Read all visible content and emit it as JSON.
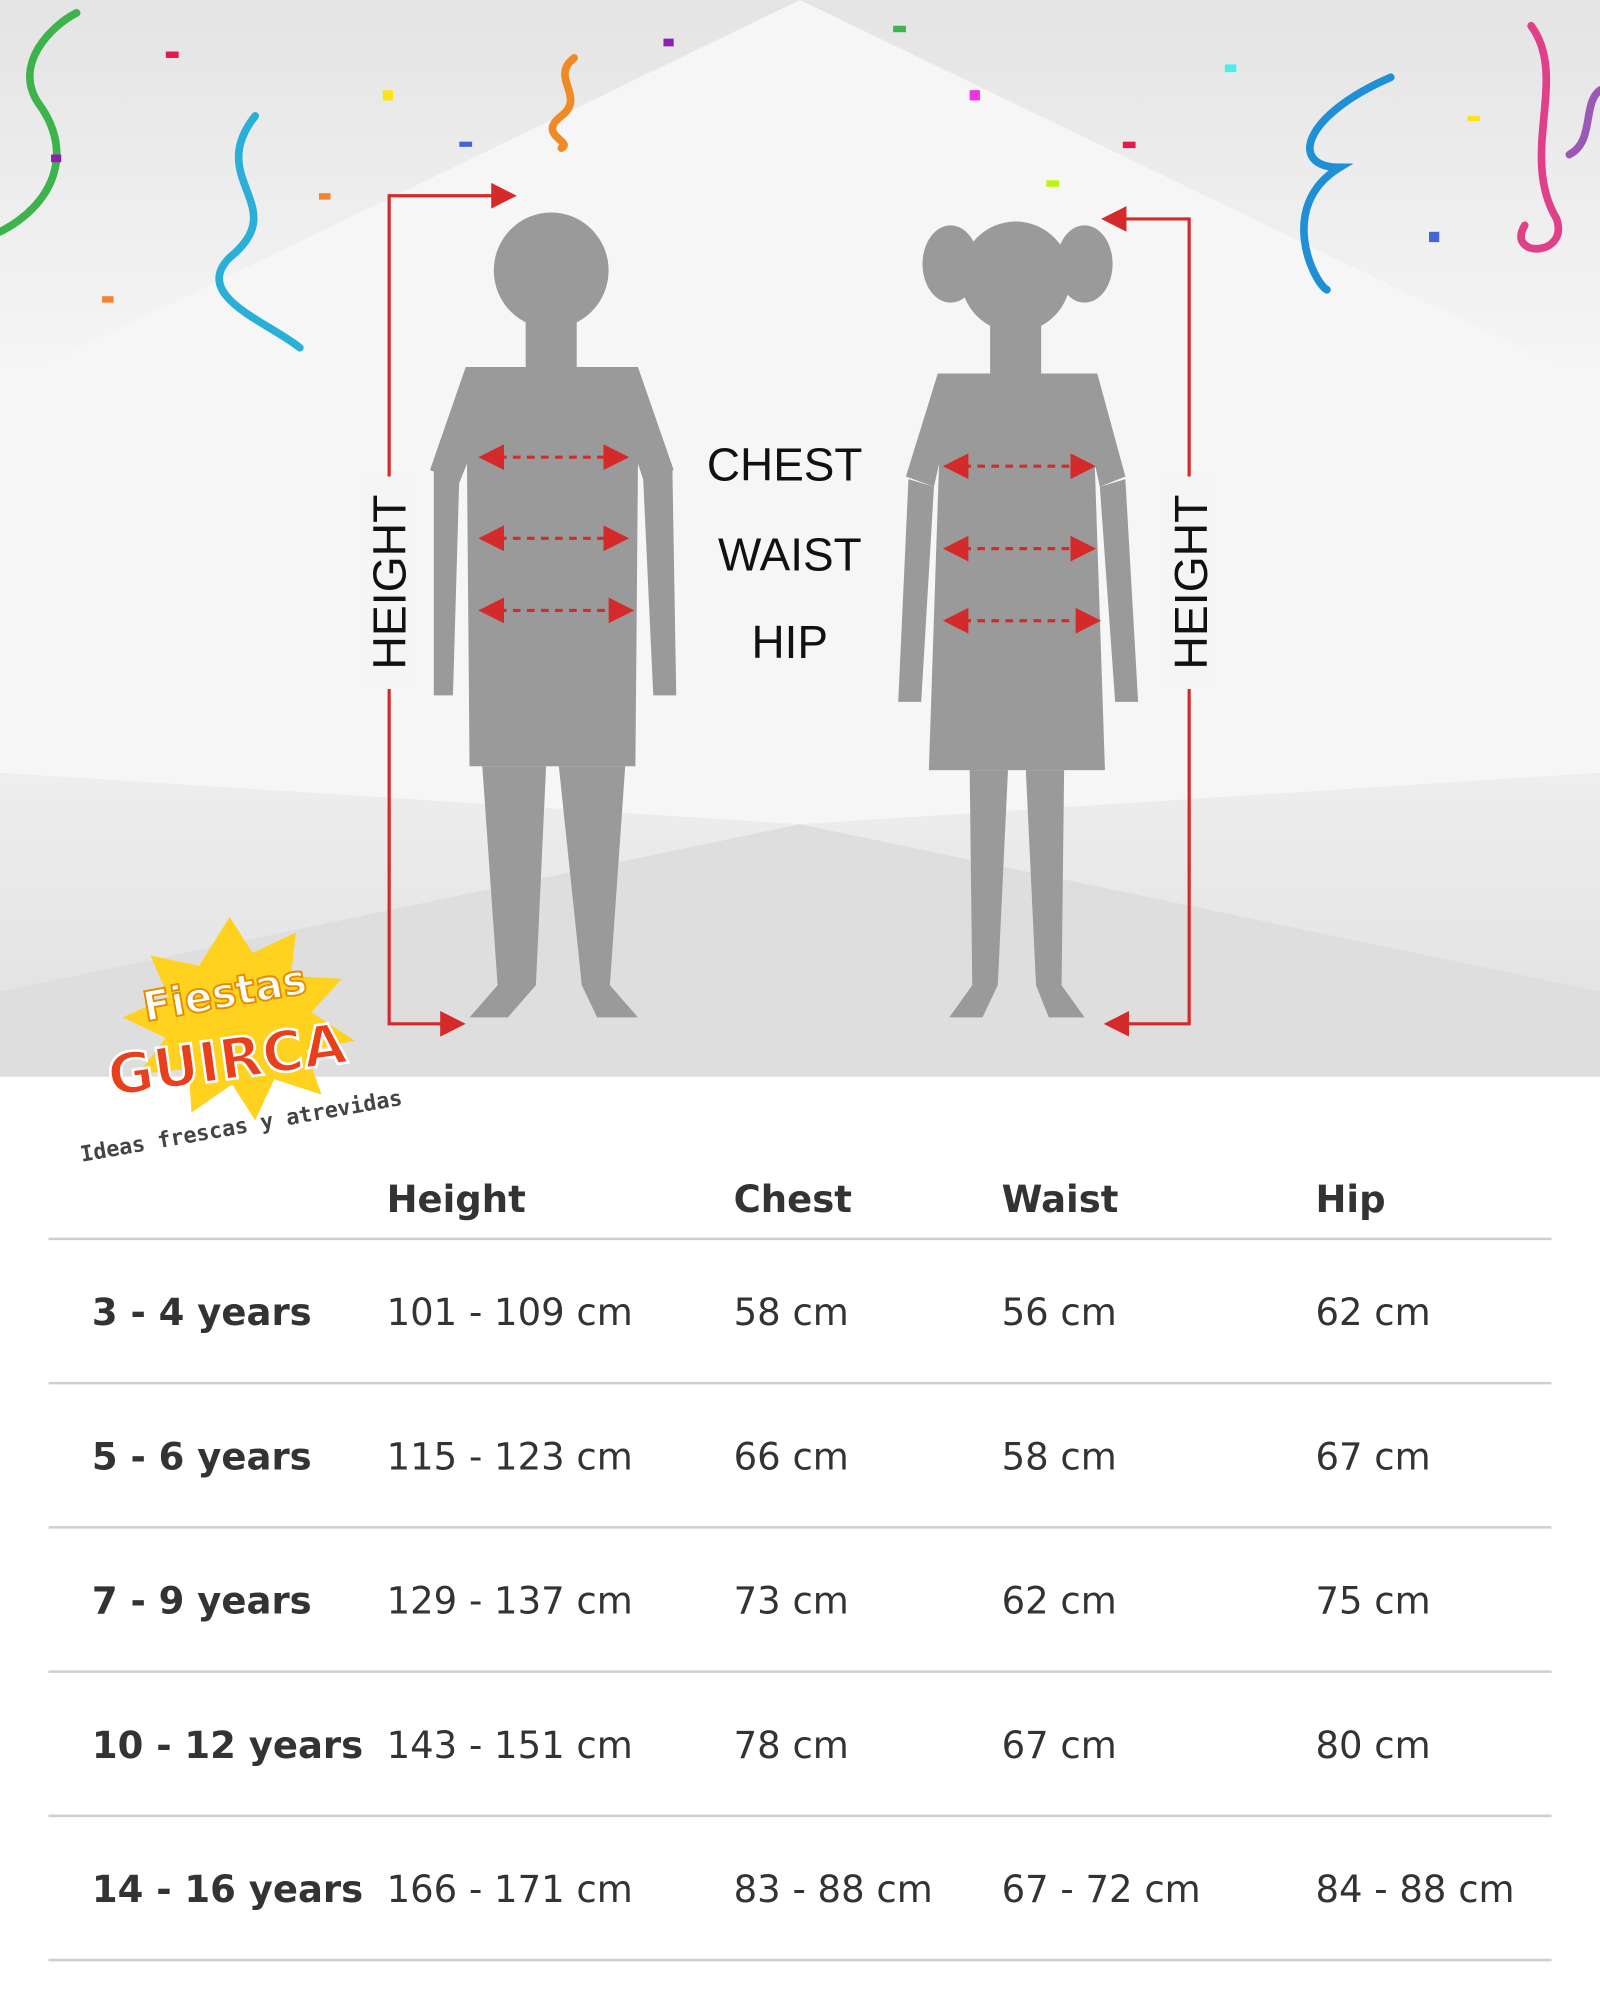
{
  "figure": {
    "labels": {
      "chest": "CHEST",
      "waist": "WAIST",
      "hip": "HIP",
      "height_left": "HEIGHT",
      "height_right": "HEIGHT"
    }
  },
  "logo": {
    "line1": "Fiestas",
    "line2": "GUIRCA",
    "tagline": "Ideas frescas y atrevidas"
  },
  "table": {
    "header": [
      "Height",
      "Chest",
      "Waist",
      "Hip"
    ],
    "rows": [
      [
        "3 - 4 years",
        "101 - 109 cm",
        "58 cm",
        "56 cm",
        "62 cm"
      ],
      [
        "5 - 6 years",
        "115 - 123 cm",
        "66 cm",
        "58 cm",
        "67 cm"
      ],
      [
        "7 - 9 years",
        "129 - 137 cm",
        "73 cm",
        "62 cm",
        "75 cm"
      ],
      [
        "10 - 12 years",
        "143 - 151 cm",
        "78 cm",
        "67 cm",
        "80 cm"
      ],
      [
        "14 - 16 years",
        "166 - 171 cm",
        "83 - 88 cm",
        "67 - 72 cm",
        "84 - 88 cm"
      ]
    ]
  }
}
